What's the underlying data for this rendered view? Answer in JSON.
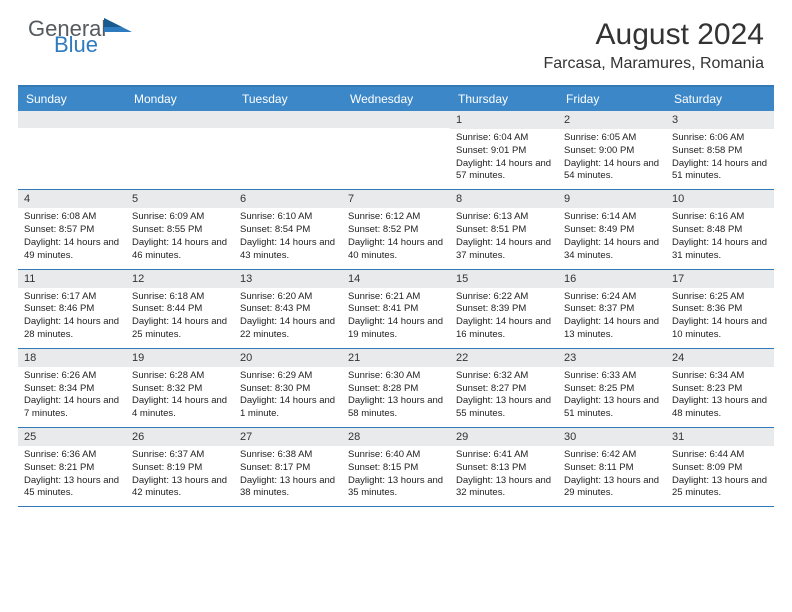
{
  "logo": {
    "general": "General",
    "blue": "Blue"
  },
  "title": "August 2024",
  "location": "Farcasa, Maramures, Romania",
  "colors": {
    "header_bg": "#3b87c8",
    "border": "#3279b7",
    "daynum_bg": "#e9eaeb",
    "text": "#222222",
    "logo_gray": "#555a5e",
    "logo_blue": "#2f7bbf"
  },
  "day_names": [
    "Sunday",
    "Monday",
    "Tuesday",
    "Wednesday",
    "Thursday",
    "Friday",
    "Saturday"
  ],
  "weeks": [
    [
      {
        "n": "",
        "sr": "",
        "ss": "",
        "dl": ""
      },
      {
        "n": "",
        "sr": "",
        "ss": "",
        "dl": ""
      },
      {
        "n": "",
        "sr": "",
        "ss": "",
        "dl": ""
      },
      {
        "n": "",
        "sr": "",
        "ss": "",
        "dl": ""
      },
      {
        "n": "1",
        "sr": "Sunrise: 6:04 AM",
        "ss": "Sunset: 9:01 PM",
        "dl": "Daylight: 14 hours and 57 minutes."
      },
      {
        "n": "2",
        "sr": "Sunrise: 6:05 AM",
        "ss": "Sunset: 9:00 PM",
        "dl": "Daylight: 14 hours and 54 minutes."
      },
      {
        "n": "3",
        "sr": "Sunrise: 6:06 AM",
        "ss": "Sunset: 8:58 PM",
        "dl": "Daylight: 14 hours and 51 minutes."
      }
    ],
    [
      {
        "n": "4",
        "sr": "Sunrise: 6:08 AM",
        "ss": "Sunset: 8:57 PM",
        "dl": "Daylight: 14 hours and 49 minutes."
      },
      {
        "n": "5",
        "sr": "Sunrise: 6:09 AM",
        "ss": "Sunset: 8:55 PM",
        "dl": "Daylight: 14 hours and 46 minutes."
      },
      {
        "n": "6",
        "sr": "Sunrise: 6:10 AM",
        "ss": "Sunset: 8:54 PM",
        "dl": "Daylight: 14 hours and 43 minutes."
      },
      {
        "n": "7",
        "sr": "Sunrise: 6:12 AM",
        "ss": "Sunset: 8:52 PM",
        "dl": "Daylight: 14 hours and 40 minutes."
      },
      {
        "n": "8",
        "sr": "Sunrise: 6:13 AM",
        "ss": "Sunset: 8:51 PM",
        "dl": "Daylight: 14 hours and 37 minutes."
      },
      {
        "n": "9",
        "sr": "Sunrise: 6:14 AM",
        "ss": "Sunset: 8:49 PM",
        "dl": "Daylight: 14 hours and 34 minutes."
      },
      {
        "n": "10",
        "sr": "Sunrise: 6:16 AM",
        "ss": "Sunset: 8:48 PM",
        "dl": "Daylight: 14 hours and 31 minutes."
      }
    ],
    [
      {
        "n": "11",
        "sr": "Sunrise: 6:17 AM",
        "ss": "Sunset: 8:46 PM",
        "dl": "Daylight: 14 hours and 28 minutes."
      },
      {
        "n": "12",
        "sr": "Sunrise: 6:18 AM",
        "ss": "Sunset: 8:44 PM",
        "dl": "Daylight: 14 hours and 25 minutes."
      },
      {
        "n": "13",
        "sr": "Sunrise: 6:20 AM",
        "ss": "Sunset: 8:43 PM",
        "dl": "Daylight: 14 hours and 22 minutes."
      },
      {
        "n": "14",
        "sr": "Sunrise: 6:21 AM",
        "ss": "Sunset: 8:41 PM",
        "dl": "Daylight: 14 hours and 19 minutes."
      },
      {
        "n": "15",
        "sr": "Sunrise: 6:22 AM",
        "ss": "Sunset: 8:39 PM",
        "dl": "Daylight: 14 hours and 16 minutes."
      },
      {
        "n": "16",
        "sr": "Sunrise: 6:24 AM",
        "ss": "Sunset: 8:37 PM",
        "dl": "Daylight: 14 hours and 13 minutes."
      },
      {
        "n": "17",
        "sr": "Sunrise: 6:25 AM",
        "ss": "Sunset: 8:36 PM",
        "dl": "Daylight: 14 hours and 10 minutes."
      }
    ],
    [
      {
        "n": "18",
        "sr": "Sunrise: 6:26 AM",
        "ss": "Sunset: 8:34 PM",
        "dl": "Daylight: 14 hours and 7 minutes."
      },
      {
        "n": "19",
        "sr": "Sunrise: 6:28 AM",
        "ss": "Sunset: 8:32 PM",
        "dl": "Daylight: 14 hours and 4 minutes."
      },
      {
        "n": "20",
        "sr": "Sunrise: 6:29 AM",
        "ss": "Sunset: 8:30 PM",
        "dl": "Daylight: 14 hours and 1 minute."
      },
      {
        "n": "21",
        "sr": "Sunrise: 6:30 AM",
        "ss": "Sunset: 8:28 PM",
        "dl": "Daylight: 13 hours and 58 minutes."
      },
      {
        "n": "22",
        "sr": "Sunrise: 6:32 AM",
        "ss": "Sunset: 8:27 PM",
        "dl": "Daylight: 13 hours and 55 minutes."
      },
      {
        "n": "23",
        "sr": "Sunrise: 6:33 AM",
        "ss": "Sunset: 8:25 PM",
        "dl": "Daylight: 13 hours and 51 minutes."
      },
      {
        "n": "24",
        "sr": "Sunrise: 6:34 AM",
        "ss": "Sunset: 8:23 PM",
        "dl": "Daylight: 13 hours and 48 minutes."
      }
    ],
    [
      {
        "n": "25",
        "sr": "Sunrise: 6:36 AM",
        "ss": "Sunset: 8:21 PM",
        "dl": "Daylight: 13 hours and 45 minutes."
      },
      {
        "n": "26",
        "sr": "Sunrise: 6:37 AM",
        "ss": "Sunset: 8:19 PM",
        "dl": "Daylight: 13 hours and 42 minutes."
      },
      {
        "n": "27",
        "sr": "Sunrise: 6:38 AM",
        "ss": "Sunset: 8:17 PM",
        "dl": "Daylight: 13 hours and 38 minutes."
      },
      {
        "n": "28",
        "sr": "Sunrise: 6:40 AM",
        "ss": "Sunset: 8:15 PM",
        "dl": "Daylight: 13 hours and 35 minutes."
      },
      {
        "n": "29",
        "sr": "Sunrise: 6:41 AM",
        "ss": "Sunset: 8:13 PM",
        "dl": "Daylight: 13 hours and 32 minutes."
      },
      {
        "n": "30",
        "sr": "Sunrise: 6:42 AM",
        "ss": "Sunset: 8:11 PM",
        "dl": "Daylight: 13 hours and 29 minutes."
      },
      {
        "n": "31",
        "sr": "Sunrise: 6:44 AM",
        "ss": "Sunset: 8:09 PM",
        "dl": "Daylight: 13 hours and 25 minutes."
      }
    ]
  ]
}
